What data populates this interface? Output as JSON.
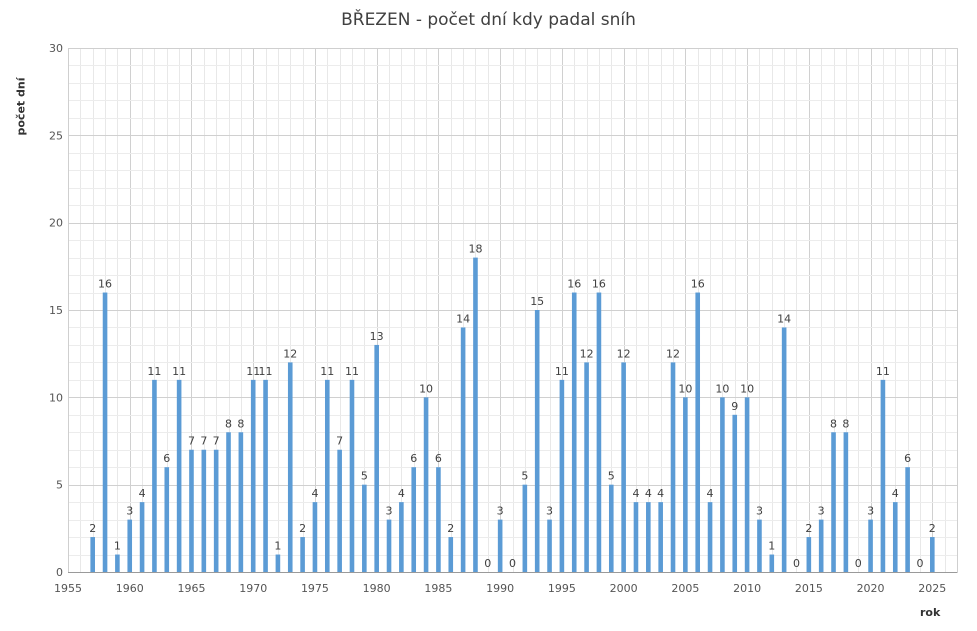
{
  "chart_data": {
    "type": "bar",
    "title": "BŘEZEN - počet dní kdy padal sníh",
    "xlabel": "rok",
    "ylabel": "počet dní",
    "xlim": [
      1955,
      2027
    ],
    "ylim": [
      0,
      30
    ],
    "x_ticks": [
      1955,
      1960,
      1965,
      1970,
      1975,
      1980,
      1985,
      1990,
      1995,
      2000,
      2005,
      2010,
      2015,
      2020,
      2025
    ],
    "y_ticks": [
      0,
      5,
      10,
      15,
      20,
      25,
      30
    ],
    "grid": true,
    "bar_color": "#5B9BD5",
    "x": [
      1957,
      1958,
      1959,
      1960,
      1961,
      1962,
      1963,
      1964,
      1965,
      1966,
      1967,
      1968,
      1969,
      1970,
      1971,
      1972,
      1973,
      1974,
      1975,
      1976,
      1977,
      1978,
      1979,
      1980,
      1981,
      1982,
      1983,
      1984,
      1985,
      1986,
      1987,
      1988,
      1989,
      1990,
      1991,
      1992,
      1993,
      1994,
      1995,
      1996,
      1997,
      1998,
      1999,
      2000,
      2001,
      2002,
      2003,
      2004,
      2005,
      2006,
      2007,
      2008,
      2009,
      2010,
      2011,
      2012,
      2013,
      2014,
      2015,
      2016,
      2017,
      2018,
      2019,
      2020,
      2021,
      2022,
      2023,
      2024,
      2025
    ],
    "values": [
      2,
      16,
      1,
      3,
      4,
      11,
      6,
      11,
      7,
      7,
      7,
      8,
      8,
      11,
      11,
      1,
      12,
      2,
      4,
      11,
      7,
      11,
      5,
      13,
      3,
      4,
      6,
      10,
      6,
      2,
      14,
      18,
      0,
      3,
      0,
      5,
      15,
      3,
      11,
      16,
      12,
      16,
      5,
      12,
      4,
      4,
      4,
      12,
      10,
      16,
      4,
      10,
      9,
      10,
      3,
      1,
      14,
      0,
      2,
      3,
      8,
      8,
      0,
      3,
      11,
      4,
      6,
      0,
      2
    ]
  }
}
